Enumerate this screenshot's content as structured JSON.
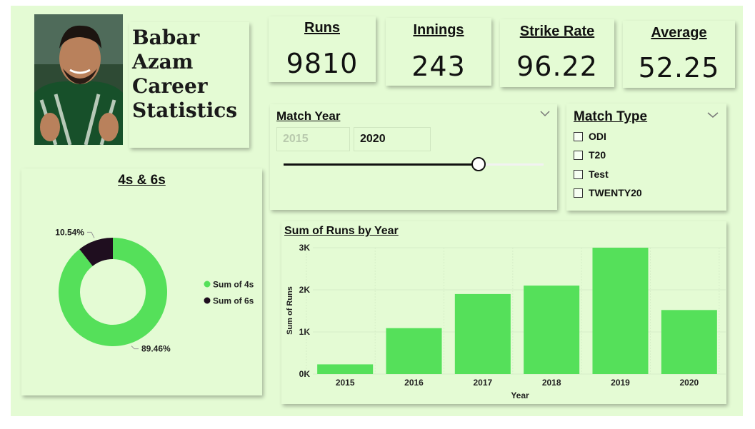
{
  "profile": {
    "title_lines": [
      "Babar",
      "Azam",
      "Career",
      "Statistics"
    ]
  },
  "kpis": [
    {
      "label": "Runs",
      "value": "9810"
    },
    {
      "label": "Innings",
      "value": "243"
    },
    {
      "label": "Strike Rate",
      "value": "96.22"
    },
    {
      "label": "Average",
      "value": "52.25"
    }
  ],
  "year_slicer": {
    "title": "Match Year",
    "from": "2015",
    "to": "2020",
    "position": 0.75
  },
  "type_slicer": {
    "title": "Match Type",
    "options": [
      "ODI",
      "T20",
      "Test",
      "TWENTY20"
    ]
  },
  "chart_data": [
    {
      "type": "pie",
      "title": "4s & 6s",
      "labels": [
        "Sum of 4s",
        "Sum of 6s"
      ],
      "values": [
        89.46,
        10.54
      ],
      "value_labels": [
        "89.46%",
        "10.54%"
      ],
      "colors": [
        "#55e05a",
        "#1f0e1f"
      ],
      "legend_position": "right"
    },
    {
      "type": "bar",
      "title": "Sum of Runs by Year",
      "categories": [
        "2015",
        "2016",
        "2017",
        "2018",
        "2019",
        "2020"
      ],
      "values": [
        230,
        1090,
        1900,
        2100,
        3000,
        1520
      ],
      "xlabel": "Year",
      "ylabel": "Sum of Runs",
      "ylim": [
        0,
        3000
      ],
      "yticks": [
        "0K",
        "1K",
        "2K",
        "3K"
      ],
      "color": "#55e05a",
      "grid": true
    }
  ]
}
